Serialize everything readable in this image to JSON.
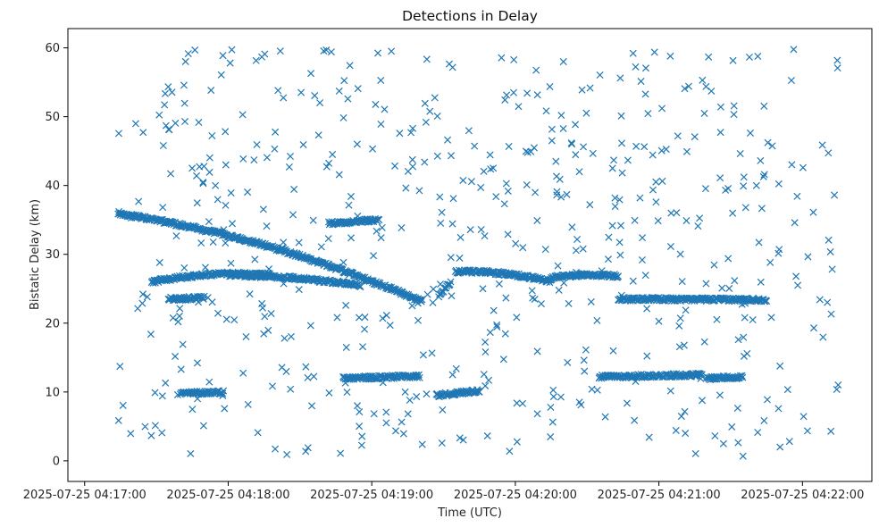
{
  "chart_data": {
    "type": "scatter",
    "title": "Detections in Delay",
    "xlabel": "Time (UTC)",
    "ylabel": "Bistatic Delay (km)",
    "marker": "x",
    "color": "#1f77b4",
    "grid": false,
    "x_ticks": [
      "2025-07-25 04:17:00",
      "2025-07-25 04:18:00",
      "2025-07-25 04:19:00",
      "2025-07-25 04:20:00",
      "2025-07-25 04:21:00",
      "2025-07-25 04:22:00"
    ],
    "y_ticks": [
      "0",
      "10",
      "20",
      "30",
      "40",
      "50",
      "60"
    ],
    "xlim": [
      "2025-07-25 04:16:53",
      "2025-07-25 04:22:29"
    ],
    "ylim": [
      -3.0,
      62.8
    ],
    "tracks": [
      {
        "start": "2025-07-25 04:17:14",
        "end": "2025-07-25 04:19:21",
        "delay_start_km": 36.0,
        "delay_end_km": 23.2,
        "curvature": 1.5
      },
      {
        "start": "2025-07-25 04:17:28",
        "end": "2025-07-25 04:18:18",
        "delay_start_km": 26.0,
        "delay_end_km": 27.0,
        "curvature": 0.6
      },
      {
        "start": "2025-07-25 04:18:00",
        "end": "2025-07-25 04:18:55",
        "delay_start_km": 27.0,
        "delay_end_km": 25.5,
        "curvature": 0.3
      },
      {
        "start": "2025-07-25 04:19:28",
        "end": "2025-07-25 04:19:33",
        "delay_start_km": 24.0,
        "delay_end_km": 26.0,
        "curvature": 0
      },
      {
        "start": "2025-07-25 04:19:35",
        "end": "2025-07-25 04:20:15",
        "delay_start_km": 27.5,
        "delay_end_km": 26.1,
        "curvature": 0.4
      },
      {
        "start": "2025-07-25 04:20:15",
        "end": "2025-07-25 04:20:43",
        "delay_start_km": 26.6,
        "delay_end_km": 26.8,
        "curvature": 0.3
      },
      {
        "start": "2025-07-25 04:20:43",
        "end": "2025-07-25 04:21:45",
        "delay_start_km": 23.5,
        "delay_end_km": 23.4,
        "curvature": 0
      },
      {
        "start": "2025-07-25 04:17:35",
        "end": "2025-07-25 04:17:50",
        "delay_start_km": 23.5,
        "delay_end_km": 23.7,
        "curvature": 0
      },
      {
        "start": "2025-07-25 04:18:48",
        "end": "2025-07-25 04:19:20",
        "delay_start_km": 12.0,
        "delay_end_km": 12.3,
        "curvature": 0
      },
      {
        "start": "2025-07-25 04:19:27",
        "end": "2025-07-25 04:19:45",
        "delay_start_km": 9.5,
        "delay_end_km": 10.2,
        "curvature": 0
      },
      {
        "start": "2025-07-25 04:20:35",
        "end": "2025-07-25 04:21:18",
        "delay_start_km": 12.2,
        "delay_end_km": 12.5,
        "curvature": 0
      },
      {
        "start": "2025-07-25 04:21:20",
        "end": "2025-07-25 04:21:35",
        "delay_start_km": 12.0,
        "delay_end_km": 12.2,
        "curvature": 0
      },
      {
        "start": "2025-07-25 04:17:40",
        "end": "2025-07-25 04:17:58",
        "delay_start_km": 9.8,
        "delay_end_km": 10.0,
        "curvature": 0
      },
      {
        "start": "2025-07-25 04:18:42",
        "end": "2025-07-25 04:19:03",
        "delay_start_km": 34.5,
        "delay_end_km": 35.0,
        "curvature": 0
      }
    ],
    "clutter": {
      "approximate_count": 560,
      "time_range": [
        "2025-07-25 04:17:13",
        "2025-07-25 04:22:15"
      ],
      "delay_range_km": [
        0.5,
        59.8
      ]
    }
  }
}
